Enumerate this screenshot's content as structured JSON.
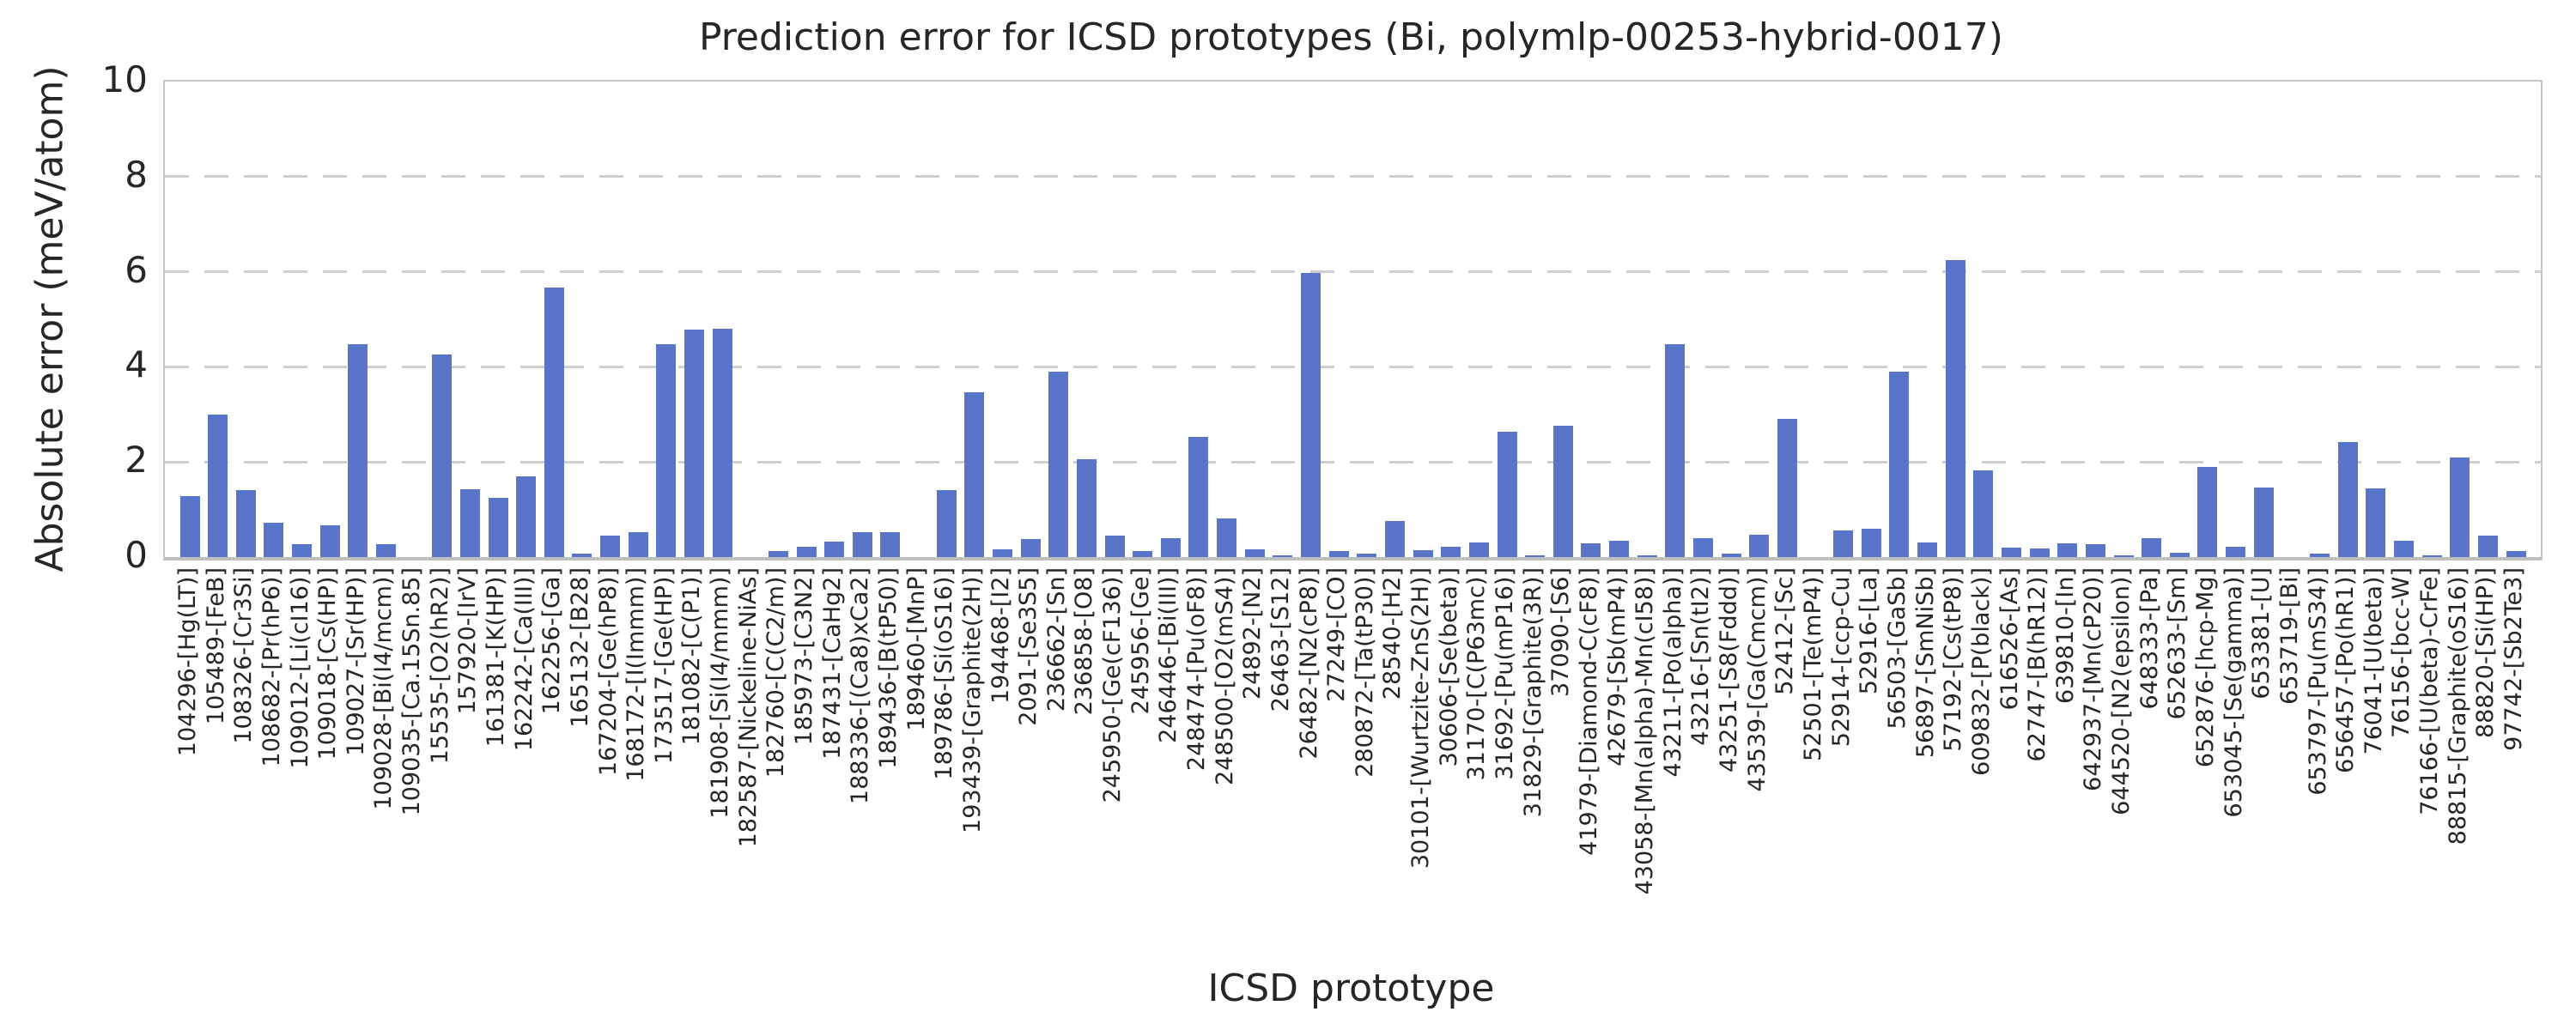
{
  "chart_data": {
    "type": "bar",
    "title": "Prediction error for ICSD prototypes (Bi, polymlp-00253-hybrid-0017)",
    "xlabel": "ICSD prototype",
    "ylabel": "Absolute error (meV/atom)",
    "ylim": [
      0,
      10
    ],
    "yticks": [
      0,
      2,
      4,
      6,
      8,
      10
    ],
    "grid": "horizontal dashed at 2,4,6,8",
    "legend": "none",
    "bar_color": "#5875c9",
    "categories": [
      "104296-[Hg(LT)]",
      "105489-[FeB]",
      "108326-[Cr3Si]",
      "108682-[Pr(hP6)]",
      "109012-[Li(cI16)]",
      "109018-[Cs(HP)]",
      "109027-[Sr(HP)]",
      "109028-[Bi(I4/mcm)]",
      "109035-[Ca.15Sn.85]",
      "15535-[O2(hR2)]",
      "157920-[IrV]",
      "161381-[K(HP)]",
      "162242-[Ca(III)]",
      "162256-[Ga]",
      "165132-[B28]",
      "167204-[Ge(hP8)]",
      "168172-[I(Immm)]",
      "173517-[Ge(HP)]",
      "181082-[C(P1)]",
      "181908-[Si(I4/mmm)]",
      "182587-[Nickeline-NiAs]",
      "182760-[C(C2/m)]",
      "185973-[C3N2]",
      "187431-[CaHg2]",
      "188336-[(Ca8)xCa2]",
      "189436-[B(tP50)]",
      "189460-[MnP]",
      "189786-[Si(oS16)]",
      "193439-[Graphite(2H)]",
      "194468-[I2]",
      "2091-[Se3S5]",
      "236662-[Sn]",
      "236858-[O8]",
      "245950-[Ge(cF136)]",
      "245956-[Ge]",
      "246446-[Bi(III)]",
      "248474-[Pu(oF8)]",
      "248500-[O2(mS4)]",
      "24892-[N2]",
      "26463-[S12]",
      "26482-[N2(cP8)]",
      "27249-[CO]",
      "280872-[Ta(tP30)]",
      "28540-[H2]",
      "30101-[Wurtzite-ZnS(2H)]",
      "30606-[Se(beta)]",
      "31170-[C(P63mc)]",
      "31692-[Pu(mP16)]",
      "31829-[Graphite(3R)]",
      "37090-[S6]",
      "41979-[Diamond-C(cF8)]",
      "42679-[Sb(mP4)]",
      "43058-[Mn(alpha)-Mn(cI58)]",
      "43211-[Po(alpha)]",
      "43216-[Sn(tI2)]",
      "43251-[S8(Fddd)]",
      "43539-[Ga(Cmcm)]",
      "52412-[Sc]",
      "52501-[Te(mP4)]",
      "52914-[ccp-Cu]",
      "52916-[La]",
      "56503-[GaSb]",
      "56897-[SmNiSb]",
      "57192-[Cs(tP8)]",
      "609832-[P(black)]",
      "616526-[As]",
      "62747-[B(hR12)]",
      "639810-[In]",
      "642937-[Mn(cP20)]",
      "644520-[N2(epsilon)]",
      "648333-[Pa]",
      "652633-[Sm]",
      "652876-[hcp-Mg]",
      "653045-[Se(gamma)]",
      "653381-[U]",
      "653719-[Bi]",
      "653797-[Pu(mS34)]",
      "656457-[Po(hR1)]",
      "76041-[U(beta)]",
      "76156-[bcc-W]",
      "76166-[U(beta)-CrFe]",
      "88815-[Graphite(oS16)]",
      "88820-[Si(HP)]",
      "97742-[Sb2Te3]"
    ],
    "values": [
      1.29,
      3.0,
      1.4,
      0.73,
      0.27,
      0.66,
      4.47,
      0.28,
      0.0,
      4.26,
      1.43,
      1.24,
      1.7,
      5.67,
      0.07,
      0.46,
      0.52,
      4.47,
      4.78,
      4.8,
      0.0,
      0.12,
      0.22,
      0.33,
      0.52,
      0.52,
      0.0,
      1.41,
      3.47,
      0.17,
      0.38,
      3.9,
      2.06,
      0.46,
      0.12,
      0.39,
      2.52,
      0.82,
      0.17,
      0.03,
      5.98,
      0.12,
      0.08,
      0.76,
      0.15,
      0.21,
      0.31,
      2.63,
      0.04,
      2.77,
      0.29,
      0.35,
      0.04,
      4.47,
      0.4,
      0.07,
      0.47,
      2.9,
      0.0,
      0.56,
      0.6,
      3.9,
      0.31,
      6.24,
      1.83,
      0.2,
      0.18,
      0.29,
      0.28,
      0.04,
      0.39,
      0.09,
      1.9,
      0.22,
      1.46,
      0.0,
      0.07,
      2.42,
      1.45,
      0.34,
      0.04,
      2.1,
      0.46,
      0.12
    ]
  }
}
